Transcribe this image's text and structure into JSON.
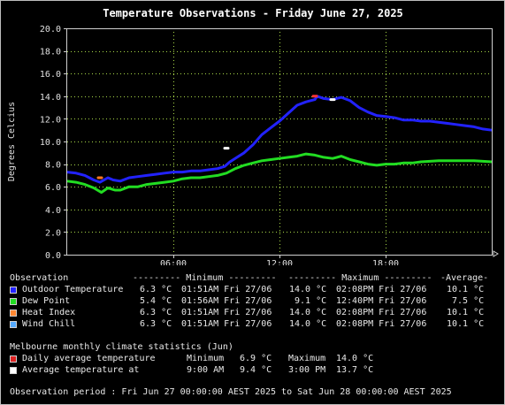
{
  "chart_data": {
    "type": "line",
    "title": "Temperature Observations - Friday June 27, 2025",
    "ylabel": "Degrees Celcius",
    "xlabel": "",
    "xlim": [
      0,
      24
    ],
    "ylim": [
      0,
      20
    ],
    "x_ticks": [
      6,
      12,
      18
    ],
    "x_tick_labels": [
      "06:00",
      "12:00",
      "18:00"
    ],
    "y_ticks": [
      0,
      2,
      4,
      6,
      8,
      10,
      12,
      14,
      16,
      18,
      20
    ],
    "y_tick_labels": [
      "0.0",
      "2.0",
      "4.0",
      "6.0",
      "8.0",
      "10.0",
      "12.0",
      "14.0",
      "16.0",
      "18.0",
      "20.0"
    ],
    "grid": true,
    "series": [
      {
        "name": "Outdoor Temperature",
        "color": "#2222ff",
        "points": [
          [
            0,
            7.3
          ],
          [
            0.5,
            7.2
          ],
          [
            1,
            7.0
          ],
          [
            1.5,
            6.6
          ],
          [
            1.85,
            6.4
          ],
          [
            2.3,
            6.8
          ],
          [
            2.6,
            6.6
          ],
          [
            3,
            6.5
          ],
          [
            3.5,
            6.8
          ],
          [
            4,
            6.9
          ],
          [
            4.5,
            7.0
          ],
          [
            5,
            7.1
          ],
          [
            5.5,
            7.2
          ],
          [
            6,
            7.3
          ],
          [
            6.5,
            7.3
          ],
          [
            7,
            7.4
          ],
          [
            7.5,
            7.4
          ],
          [
            8,
            7.5
          ],
          [
            8.5,
            7.6
          ],
          [
            8.9,
            7.8
          ],
          [
            9.2,
            8.2
          ],
          [
            9.6,
            8.6
          ],
          [
            10,
            9.0
          ],
          [
            10.5,
            9.7
          ],
          [
            11,
            10.6
          ],
          [
            11.5,
            11.2
          ],
          [
            12,
            11.8
          ],
          [
            12.5,
            12.5
          ],
          [
            13,
            13.2
          ],
          [
            13.5,
            13.5
          ],
          [
            14,
            13.7
          ],
          [
            14.13,
            14.0
          ],
          [
            14.5,
            13.8
          ],
          [
            15,
            13.7
          ],
          [
            15.5,
            13.9
          ],
          [
            16,
            13.6
          ],
          [
            16.5,
            13.0
          ],
          [
            17,
            12.6
          ],
          [
            17.5,
            12.3
          ],
          [
            18,
            12.2
          ],
          [
            18.5,
            12.1
          ],
          [
            19,
            11.9
          ],
          [
            19.5,
            11.9
          ],
          [
            20,
            11.8
          ],
          [
            20.5,
            11.8
          ],
          [
            21,
            11.7
          ],
          [
            21.5,
            11.6
          ],
          [
            22,
            11.5
          ],
          [
            22.5,
            11.4
          ],
          [
            23,
            11.3
          ],
          [
            23.5,
            11.1
          ],
          [
            24,
            11.0
          ]
        ]
      },
      {
        "name": "Dew Point",
        "color": "#22dd22",
        "points": [
          [
            0,
            6.5
          ],
          [
            0.5,
            6.4
          ],
          [
            1,
            6.2
          ],
          [
            1.5,
            5.9
          ],
          [
            1.93,
            5.5
          ],
          [
            2.3,
            5.9
          ],
          [
            2.7,
            5.7
          ],
          [
            3,
            5.7
          ],
          [
            3.5,
            6.0
          ],
          [
            4,
            6.0
          ],
          [
            4.5,
            6.2
          ],
          [
            5,
            6.3
          ],
          [
            5.5,
            6.4
          ],
          [
            6,
            6.5
          ],
          [
            6.5,
            6.7
          ],
          [
            7,
            6.8
          ],
          [
            7.5,
            6.8
          ],
          [
            8,
            6.9
          ],
          [
            8.5,
            7.0
          ],
          [
            9,
            7.2
          ],
          [
            9.5,
            7.6
          ],
          [
            10,
            7.9
          ],
          [
            10.5,
            8.1
          ],
          [
            11,
            8.3
          ],
          [
            11.5,
            8.4
          ],
          [
            12,
            8.5
          ],
          [
            12.5,
            8.6
          ],
          [
            13,
            8.7
          ],
          [
            13.5,
            8.9
          ],
          [
            14,
            8.8
          ],
          [
            14.5,
            8.6
          ],
          [
            15,
            8.5
          ],
          [
            15.5,
            8.7
          ],
          [
            16,
            8.4
          ],
          [
            16.5,
            8.2
          ],
          [
            17,
            8.0
          ],
          [
            17.5,
            7.9
          ],
          [
            18,
            8.0
          ],
          [
            18.5,
            8.0
          ],
          [
            19,
            8.1
          ],
          [
            19.5,
            8.1
          ],
          [
            20,
            8.2
          ],
          [
            21,
            8.3
          ],
          [
            22,
            8.3
          ],
          [
            23,
            8.3
          ],
          [
            24,
            8.2
          ]
        ]
      }
    ],
    "annotations": [
      {
        "label": "Heat Index minimum",
        "x": 1.85,
        "y": 6.8,
        "color": "#ff7722"
      },
      {
        "label": "Daily average temperature",
        "x": 14.0,
        "y": 14.0,
        "color": "#ff3333"
      },
      {
        "label": "Average temperature at 9:00 AM",
        "x": 9.0,
        "y": 9.4,
        "color": "#ffffff"
      },
      {
        "label": "Average temperature at 3:00 PM",
        "x": 15.0,
        "y": 13.7,
        "color": "#ffffff"
      }
    ]
  },
  "stats": {
    "header": {
      "observation": "Observation",
      "minimum": "--------- Minimum ---------",
      "maximum": "--------- Maximum ---------",
      "average": "-Average-"
    },
    "rows": [
      {
        "label": "Outdoor Temperature",
        "color": "#2222ff",
        "min_value": "6.3 °C",
        "min_time": "01:51AM Fri 27/06",
        "max_value": "14.0 °C",
        "max_time": "02:08PM Fri 27/06",
        "avg": "10.1 °C"
      },
      {
        "label": "Dew Point",
        "color": "#22dd22",
        "min_value": "5.4 °C",
        "min_time": "01:56AM Fri 27/06",
        "max_value": "9.1 °C",
        "max_time": "12:40PM Fri 27/06",
        "avg": "7.5 °C"
      },
      {
        "label": "Heat Index",
        "color": "#ff8833",
        "min_value": "6.3 °C",
        "min_time": "01:51AM Fri 27/06",
        "max_value": "14.0 °C",
        "max_time": "02:08PM Fri 27/06",
        "avg": "10.1 °C"
      },
      {
        "label": "Wind Chill",
        "color": "#55aaff",
        "min_value": "6.3 °C",
        "min_time": "01:51AM Fri 27/06",
        "max_value": "14.0 °C",
        "max_time": "02:08PM Fri 27/06",
        "avg": "10.1 °C"
      }
    ]
  },
  "climate": {
    "title": "Melbourne monthly climate statistics (Jun)",
    "daily": {
      "label": "Daily average temperature",
      "color": "#dd2222",
      "min_label": "Minimum",
      "min_value": "6.9 °C",
      "max_label": "Maximum",
      "max_value": "14.0 °C"
    },
    "average": {
      "label": "Average temperature at",
      "color": "#ffffff",
      "time1": "9:00 AM",
      "value1": "9.4 °C",
      "time2": "3:00 PM",
      "value2": "13.7 °C"
    }
  },
  "period": "Observation period : Fri Jun 27 00:00:00 AEST 2025 to Sat Jun 28 00:00:00 AEST 2025"
}
